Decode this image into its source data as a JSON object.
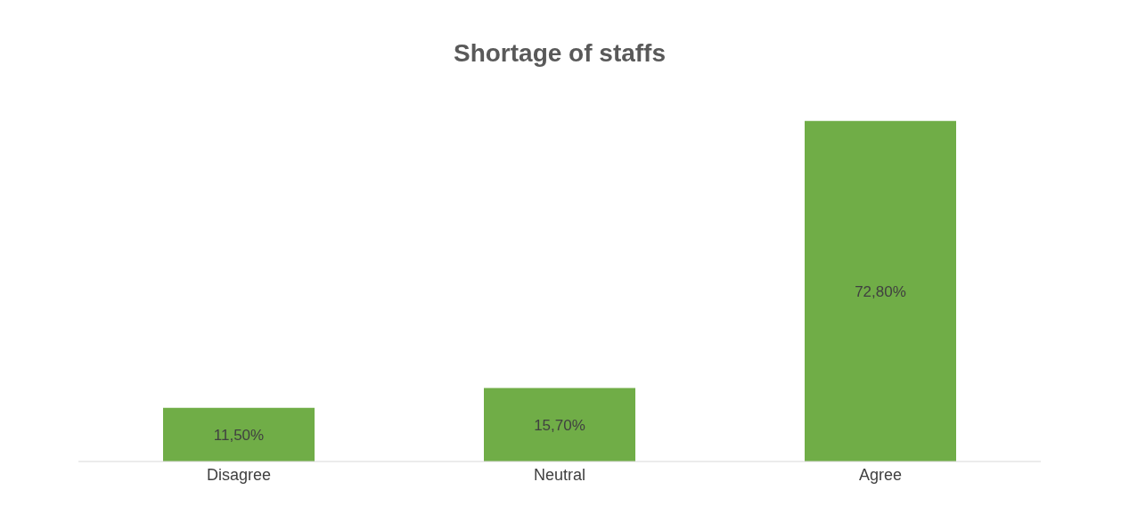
{
  "chart_data": {
    "type": "bar",
    "title": "Shortage of staffs",
    "categories": [
      "Disagree",
      "Neutral",
      "Agree"
    ],
    "values": [
      11.5,
      15.7,
      72.8
    ],
    "value_labels": [
      "11,50%",
      "15,70%",
      "72,80%"
    ],
    "color": "#70ad47",
    "tick_labels": "x"
  }
}
